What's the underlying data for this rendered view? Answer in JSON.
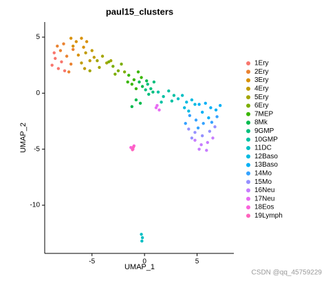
{
  "chart_data": {
    "type": "scatter",
    "title": "paul15_clusters",
    "x_label": "UMAP_1",
    "y_label": "UMAP_2",
    "xlim": [
      -9.5,
      8.5
    ],
    "ylim": [
      -14.3,
      6.35
    ],
    "xticks": [
      -5,
      0,
      5
    ],
    "yticks": [
      5,
      0,
      -5,
      -10
    ],
    "legend": "right",
    "watermark": "CSDN @qq_45759229",
    "series": [
      {
        "name": "1Ery",
        "color": "#F8766D",
        "x": [
          -8.8,
          -8.5,
          -8.2,
          -7.9,
          -8.6,
          -7.6
        ],
        "values": [
          2.5,
          3.1,
          2.2,
          2.8,
          3.6,
          2.0
        ]
      },
      {
        "name": "2Ery",
        "color": "#EA8331",
        "x": [
          -8.0,
          -7.4,
          -7.0,
          -7.7,
          -6.8,
          -7.2,
          -8.3
        ],
        "values": [
          3.8,
          3.3,
          2.6,
          4.4,
          3.9,
          1.9,
          4.2
        ]
      },
      {
        "name": "3Ery",
        "color": "#D89000",
        "x": [
          -6.5,
          -6.0,
          -6.8,
          -5.8,
          -6.3,
          -5.5,
          -7.0
        ],
        "values": [
          4.6,
          4.9,
          4.2,
          4.1,
          3.4,
          4.6,
          4.9
        ]
      },
      {
        "name": "4Ery",
        "color": "#C09B00",
        "x": [
          -5.6,
          -5.2,
          -6.0,
          -5.0,
          -5.7,
          -4.8
        ],
        "values": [
          3.6,
          2.9,
          2.7,
          3.8,
          2.2,
          3.2
        ]
      },
      {
        "name": "5Ery",
        "color": "#A3A500",
        "x": [
          -4.5,
          -4.0,
          -3.6,
          -4.3,
          -3.2,
          -5.2
        ],
        "values": [
          2.9,
          3.3,
          2.7,
          2.3,
          2.9,
          2.0
        ]
      },
      {
        "name": "6Ery",
        "color": "#7CAE00",
        "x": [
          -3.0,
          -2.5,
          -2.2,
          -2.8,
          -1.9,
          -3.4
        ],
        "values": [
          2.4,
          2.0,
          2.6,
          1.7,
          1.9,
          2.8
        ]
      },
      {
        "name": "7MEP",
        "color": "#39B600",
        "x": [
          -1.5,
          -1.0,
          -0.6,
          -1.2,
          -0.3,
          -0.8,
          -1.6
        ],
        "values": [
          1.6,
          1.2,
          1.9,
          0.8,
          1.4,
          0.4,
          1.0
        ]
      },
      {
        "name": "8Mk",
        "color": "#00BB4E",
        "x": [
          -0.5,
          -0.2,
          0.2,
          -0.8,
          -1.2,
          -0.4
        ],
        "values": [
          1.0,
          0.6,
          1.1,
          -0.6,
          -1.2,
          -0.9
        ]
      },
      {
        "name": "9GMP",
        "color": "#00BF7D",
        "x": [
          0.3,
          0.6,
          0.9,
          0.4,
          0.1,
          0.8
        ],
        "values": [
          0.8,
          0.4,
          1.0,
          -0.1,
          0.3,
          0.1
        ]
      },
      {
        "name": "10GMP",
        "color": "#00C1A3",
        "x": [
          1.3,
          1.8,
          2.3,
          2.8,
          1.6,
          2.6
        ],
        "values": [
          0.1,
          -0.3,
          0.2,
          -0.2,
          -0.8,
          -0.7
        ]
      },
      {
        "name": "11DC",
        "color": "#00BFC4",
        "x": [
          3.2,
          3.6,
          -0.3,
          -0.2,
          -0.25
        ],
        "values": [
          -0.5,
          -0.2,
          -12.6,
          -12.9,
          -13.2
        ]
      },
      {
        "name": "12Baso",
        "color": "#00BAE0",
        "x": [
          4.0,
          4.5,
          3.8,
          4.8,
          4.2
        ],
        "values": [
          -0.8,
          -0.6,
          -1.3,
          -1.0,
          -1.6
        ]
      },
      {
        "name": "13Baso",
        "color": "#00B0F6",
        "x": [
          5.2,
          5.8,
          6.3,
          5.5,
          6.8,
          6.1,
          7.2
        ],
        "values": [
          -1.0,
          -0.9,
          -1.3,
          -1.7,
          -1.5,
          -2.2,
          -1.1
        ]
      },
      {
        "name": "14Mo",
        "color": "#35A2FF",
        "x": [
          4.3,
          4.9,
          5.6,
          6.4,
          5.1,
          6.9,
          3.9
        ],
        "values": [
          -2.0,
          -2.4,
          -2.7,
          -2.6,
          -3.1,
          -2.1,
          -2.7
        ]
      },
      {
        "name": "15Mo",
        "color": "#9590FF",
        "x": [
          4.2,
          4.8,
          5.5,
          6.2,
          6.7,
          4.5
        ],
        "values": [
          -3.2,
          -3.5,
          -3.8,
          -3.4,
          -3.0,
          -4.0
        ]
      },
      {
        "name": "16Neu",
        "color": "#C77CFF",
        "x": [
          4.8,
          5.4,
          6.0,
          5.2,
          5.9,
          6.5
        ],
        "values": [
          -4.2,
          -4.6,
          -4.4,
          -5.0,
          -5.1,
          -4.0
        ]
      },
      {
        "name": "17Neu",
        "color": "#E76BF3",
        "x": [
          1.1,
          1.4,
          1.2
        ],
        "values": [
          -1.3,
          -1.5,
          -1.1
        ]
      },
      {
        "name": "18Eos",
        "color": "#FA62DB",
        "x": [
          -1.2,
          -1.1,
          -1.3,
          -1.0
        ],
        "values": [
          -4.9,
          -5.0,
          -4.85,
          -4.7
        ]
      },
      {
        "name": "19Lymph",
        "color": "#FF62BC",
        "x": [
          -1.15,
          -1.05
        ],
        "values": [
          -5.05,
          -4.8
        ]
      }
    ]
  }
}
